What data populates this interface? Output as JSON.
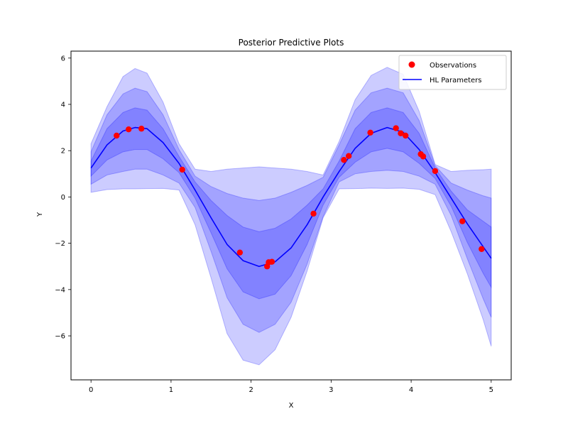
{
  "chart_data": {
    "type": "line",
    "title": "Posterior Predictive Plots",
    "xlabel": "X",
    "ylabel": "Y",
    "xlim": [
      -0.25,
      5.25
    ],
    "ylim": [
      -7.9,
      6.3
    ],
    "xticks": [
      0,
      1,
      2,
      3,
      4,
      5
    ],
    "yticks": [
      -6,
      -4,
      -2,
      0,
      2,
      4,
      6
    ],
    "xtick_labels": [
      "0",
      "1",
      "2",
      "3",
      "4",
      "5"
    ],
    "ytick_labels": [
      "−6",
      "−4",
      "−2",
      "0",
      "2",
      "4",
      "6"
    ],
    "grid": false,
    "legend_position": "top-right",
    "legend": [
      {
        "label": "Observations",
        "marker": "dot",
        "color": "#ff0000"
      },
      {
        "label": "HL Parameters",
        "marker": "line",
        "color": "#0000ff"
      }
    ],
    "mean_curve": {
      "name": "HL Parameters",
      "color": "#0000ff",
      "x": [
        0,
        0.2,
        0.4,
        0.55,
        0.7,
        0.9,
        1.1,
        1.3,
        1.5,
        1.7,
        1.9,
        2.1,
        2.3,
        2.5,
        2.7,
        2.9,
        3.1,
        3.3,
        3.5,
        3.7,
        3.9,
        4.1,
        4.3,
        4.5,
        4.7,
        4.9,
        5.0
      ],
      "y": [
        1.25,
        2.25,
        2.85,
        3.0,
        2.95,
        2.35,
        1.45,
        0.3,
        -0.9,
        -2.05,
        -2.75,
        -3.0,
        -2.8,
        -2.2,
        -1.2,
        0.0,
        1.1,
        2.1,
        2.75,
        3.0,
        2.8,
        2.05,
        1.05,
        -0.05,
        -1.15,
        -2.15,
        -2.65
      ]
    },
    "bands": [
      {
        "level": "outer",
        "color": "#0000ff",
        "opacity": 0.2,
        "x": [
          0,
          0.2,
          0.4,
          0.55,
          0.7,
          0.9,
          1.1,
          1.3,
          1.5,
          1.7,
          1.9,
          2.1,
          2.3,
          2.5,
          2.7,
          2.9,
          3.1,
          3.3,
          3.5,
          3.7,
          3.9,
          4.1,
          4.3,
          4.5,
          4.7,
          4.9,
          5.0
        ],
        "upper": [
          2.3,
          3.9,
          5.2,
          5.55,
          5.35,
          4.1,
          2.3,
          1.2,
          1.1,
          1.2,
          1.25,
          1.3,
          1.25,
          1.2,
          1.1,
          0.95,
          2.4,
          4.2,
          5.25,
          5.6,
          5.3,
          3.7,
          1.4,
          1.1,
          1.15,
          1.18,
          1.2
        ],
        "lower": [
          0.2,
          0.32,
          0.35,
          0.35,
          0.36,
          0.37,
          0.3,
          -1.2,
          -3.5,
          -5.9,
          -7.05,
          -7.25,
          -6.6,
          -5.2,
          -3.2,
          -0.9,
          0.35,
          0.36,
          0.38,
          0.37,
          0.38,
          0.33,
          0.1,
          -1.5,
          -3.3,
          -5.3,
          -6.45
        ]
      },
      {
        "level": "middle",
        "color": "#0000ff",
        "opacity": 0.2,
        "x": [
          0,
          0.2,
          0.4,
          0.55,
          0.7,
          0.9,
          1.1,
          1.3,
          1.5,
          1.7,
          1.9,
          2.1,
          2.3,
          2.5,
          2.7,
          2.9,
          3.1,
          3.3,
          3.5,
          3.7,
          3.9,
          4.1,
          4.3,
          4.5,
          4.7,
          4.9,
          5.0
        ],
        "upper": [
          1.95,
          3.55,
          4.45,
          4.7,
          4.55,
          3.55,
          2.05,
          0.9,
          0.45,
          0.15,
          -0.05,
          -0.15,
          -0.05,
          0.2,
          0.5,
          0.85,
          2.25,
          3.75,
          4.5,
          4.7,
          4.5,
          3.3,
          1.35,
          0.6,
          0.3,
          0.05,
          -0.05
        ],
        "lower": [
          0.55,
          0.95,
          1.1,
          1.2,
          1.2,
          0.95,
          0.6,
          -0.45,
          -2.35,
          -4.35,
          -5.5,
          -5.85,
          -5.5,
          -4.55,
          -2.9,
          -0.85,
          0.65,
          1.0,
          1.1,
          1.15,
          1.1,
          0.9,
          0.55,
          -0.8,
          -2.65,
          -4.4,
          -5.2
        ]
      },
      {
        "level": "inner",
        "color": "#0000ff",
        "opacity": 0.2,
        "x": [
          0,
          0.2,
          0.4,
          0.55,
          0.7,
          0.9,
          1.1,
          1.3,
          1.5,
          1.7,
          1.9,
          2.1,
          2.3,
          2.5,
          2.7,
          2.9,
          3.1,
          3.3,
          3.5,
          3.7,
          3.9,
          4.1,
          4.3,
          4.5,
          4.7,
          4.9,
          5.0
        ],
        "upper": [
          1.55,
          2.95,
          3.65,
          3.85,
          3.75,
          2.95,
          1.75,
          0.65,
          -0.15,
          -0.8,
          -1.3,
          -1.5,
          -1.35,
          -0.95,
          -0.35,
          0.35,
          1.55,
          2.95,
          3.65,
          3.85,
          3.65,
          2.75,
          1.25,
          0.25,
          -0.55,
          -1.05,
          -1.3
        ],
        "lower": [
          0.9,
          1.6,
          1.95,
          2.05,
          2.05,
          1.65,
          1.05,
          -0.05,
          -1.55,
          -3.1,
          -4.1,
          -4.4,
          -4.2,
          -3.4,
          -2.05,
          -0.35,
          0.85,
          1.5,
          1.95,
          2.1,
          1.95,
          1.45,
          0.8,
          -0.4,
          -1.95,
          -3.3,
          -3.9
        ]
      }
    ],
    "observations": {
      "name": "Observations",
      "color": "#ff0000",
      "x": [
        0.32,
        0.47,
        0.63,
        1.14,
        1.86,
        2.2,
        2.22,
        2.26,
        2.78,
        3.16,
        3.22,
        3.49,
        3.81,
        3.87,
        3.93,
        4.12,
        4.15,
        4.3,
        4.64,
        4.88
      ],
      "y": [
        2.65,
        2.92,
        2.95,
        1.18,
        -2.4,
        -3.0,
        -2.82,
        -2.8,
        -0.72,
        1.6,
        1.77,
        2.78,
        2.97,
        2.75,
        2.65,
        1.85,
        1.75,
        1.12,
        -1.05,
        -2.25
      ]
    }
  }
}
